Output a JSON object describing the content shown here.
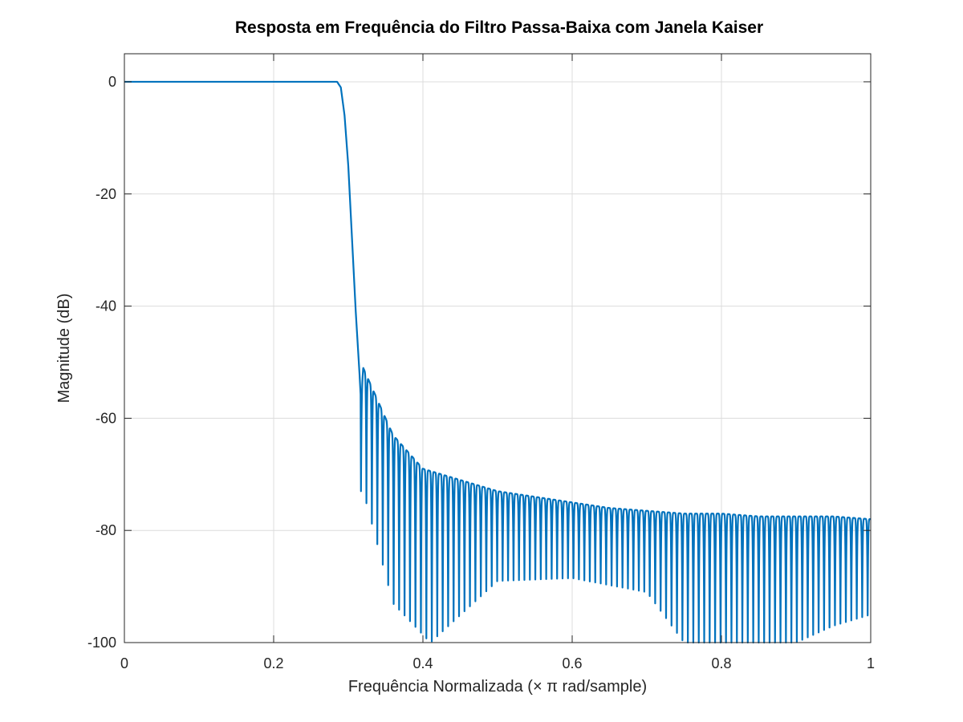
{
  "chart_data": {
    "type": "line",
    "title": "Resposta em Frequência do Filtro Passa-Baixa com Janela Kaiser",
    "xlabel": "Frequência Normalizada (× π rad/sample)",
    "ylabel": "Magnitude (dB)",
    "xlim": [
      0,
      1
    ],
    "ylim": [
      -100,
      5
    ],
    "xticks": [
      0,
      0.2,
      0.4,
      0.6,
      0.8,
      1
    ],
    "xtick_labels": [
      "0",
      "0.2",
      "0.4",
      "0.6",
      "0.8",
      "1"
    ],
    "yticks": [
      0,
      -20,
      -40,
      -60,
      -80,
      -100
    ],
    "ytick_labels": [
      "0",
      "-20",
      "-40",
      "-60",
      "-80",
      "-100"
    ],
    "grid": true,
    "legend": "none",
    "line_color": "#0072bd",
    "series": [
      {
        "passband_end": 0.285,
        "transition_end": 0.317,
        "lobe_width": 0.0073,
        "x": [
          0,
          0.285,
          0.29,
          0.295,
          0.3,
          0.305,
          0.31,
          0.315,
          0.317,
          0.32,
          0.33,
          0.34,
          0.35,
          0.36,
          0.38,
          0.4,
          0.45,
          0.5,
          0.55,
          0.6,
          0.65,
          0.7,
          0.75,
          0.8,
          0.85,
          0.9,
          0.95,
          1.0
        ],
        "y": [
          0,
          0,
          -1,
          -6,
          -15,
          -28,
          -41,
          -52,
          -57,
          -51,
          -54,
          -57,
          -60,
          -63,
          -66,
          -69,
          -71,
          -73,
          -74,
          -75,
          -76,
          -76.5,
          -77,
          -77,
          -77.5,
          -77.5,
          -77.5,
          -78
        ],
        "null_x": [
          0.32,
          0.36,
          0.41,
          0.5,
          0.6,
          0.7,
          0.75,
          0.8,
          0.9,
          0.95,
          1.0
        ],
        "null_y": [
          -73,
          -93,
          -100,
          -89,
          -88.5,
          -91,
          -100,
          -100,
          -100,
          -97,
          -95
        ]
      }
    ]
  }
}
